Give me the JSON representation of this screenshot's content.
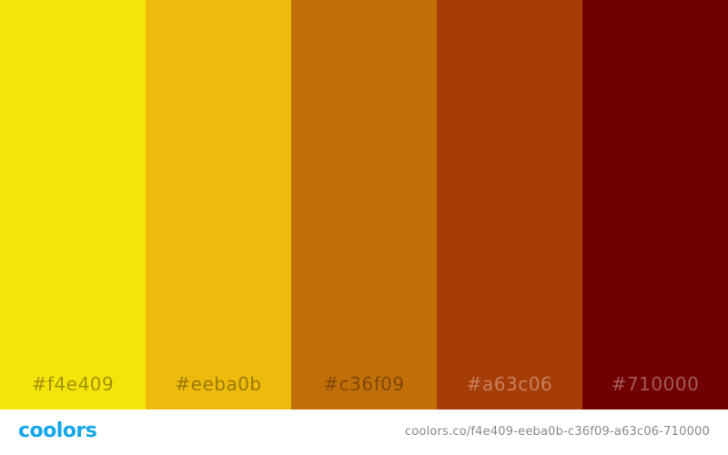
{
  "palette": {
    "colors": [
      {
        "hex": "#f4e409",
        "label": "#f4e409"
      },
      {
        "hex": "#eeba0b",
        "label": "#eeba0b"
      },
      {
        "hex": "#c36f09",
        "label": "#c36f09"
      },
      {
        "hex": "#a63c06",
        "label": "#a63c06"
      },
      {
        "hex": "#710000",
        "label": "#710000"
      }
    ]
  },
  "footer": {
    "logo_text": "coolors",
    "logo_color": "#14a7e9",
    "url": "coolors.co/f4e409-eeba0b-c36f09-a63c06-710000"
  }
}
